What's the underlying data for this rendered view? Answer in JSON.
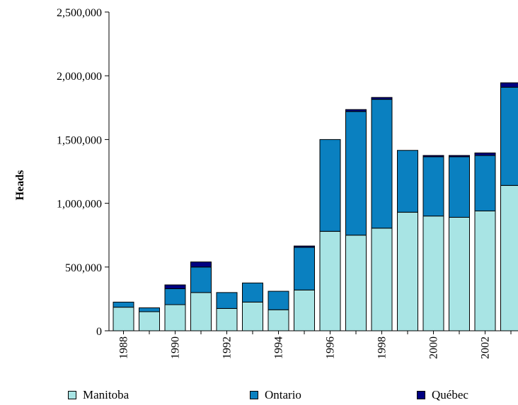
{
  "chart_data": {
    "type": "bar",
    "stacked": true,
    "ylabel": "Heads",
    "xlabel": "",
    "ylim": [
      0,
      2500000
    ],
    "y_ticks": [
      "0",
      "500,000",
      "1,000,000",
      "1,500,000",
      "2,000,000",
      "2,500,000"
    ],
    "categories": [
      "1988",
      "1989",
      "1990",
      "1991",
      "1992",
      "1993",
      "1994",
      "1995",
      "1996",
      "1997",
      "1998",
      "1999",
      "2000",
      "2001",
      "2002",
      "2003"
    ],
    "x_tick_labels": [
      "1988",
      "",
      "1990",
      "",
      "1992",
      "",
      "1994",
      "",
      "1996",
      "",
      "1998",
      "",
      "2000",
      "",
      "2002",
      ""
    ],
    "series": [
      {
        "name": "Manitoba",
        "color": "#a8e4e4",
        "values": [
          185000,
          150000,
          205000,
          300000,
          175000,
          225000,
          165000,
          320000,
          780000,
          750000,
          805000,
          930000,
          900000,
          890000,
          940000,
          1140000
        ]
      },
      {
        "name": "Ontario",
        "color": "#0a80c0",
        "values": [
          40000,
          30000,
          125000,
          200000,
          125000,
          150000,
          145000,
          335000,
          720000,
          970000,
          1010000,
          485000,
          465000,
          475000,
          435000,
          770000
        ]
      },
      {
        "name": "Québec",
        "color": "#000080",
        "values": [
          0,
          0,
          30000,
          40000,
          0,
          0,
          0,
          10000,
          0,
          15000,
          15000,
          0,
          10000,
          10000,
          20000,
          35000
        ]
      }
    ],
    "grid": false,
    "legend_position": "bottom"
  }
}
